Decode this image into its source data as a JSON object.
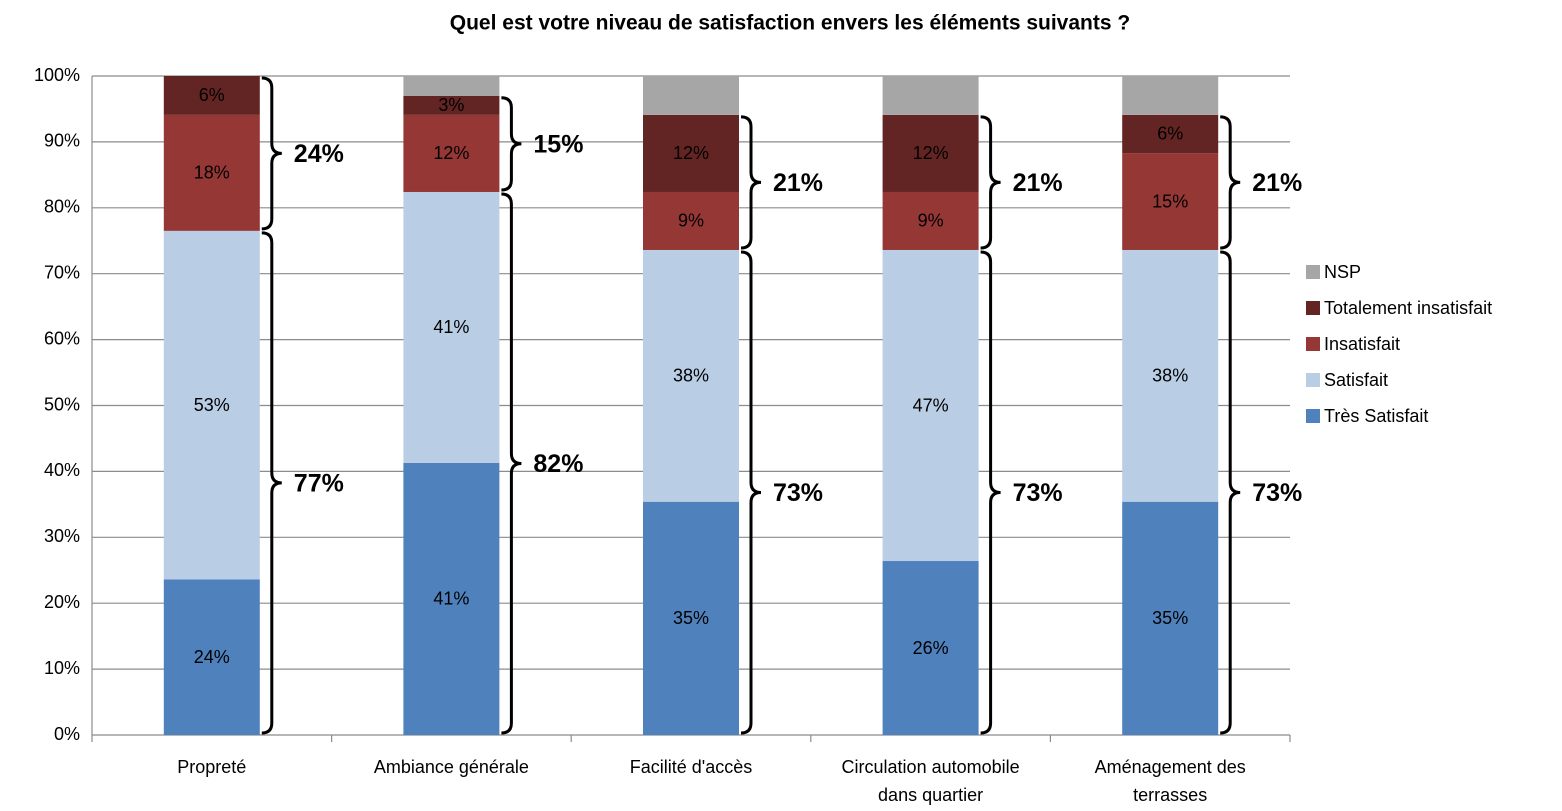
{
  "chart_data": {
    "type": "stacked_bar",
    "title": "Quel est votre niveau de satisfaction envers les éléments suivants ?",
    "categories": [
      "Propreté",
      "Ambiance générale",
      "Facilité d'accès",
      "Circulation automobile dans quartier",
      "Aménagement des terrasses"
    ],
    "series": [
      {
        "name": "Très Satisfait",
        "color": "#4f81bd",
        "values": [
          23.6,
          41.3,
          35.4,
          26.4,
          35.4
        ],
        "value_labels": [
          "24%",
          "41%",
          "35%",
          "26%",
          "35%"
        ]
      },
      {
        "name": "Satisfait",
        "color": "#b9cde5",
        "values": [
          52.9,
          41.1,
          38.2,
          47.2,
          38.2
        ],
        "value_labels": [
          "53%",
          "41%",
          "38%",
          "47%",
          "38%"
        ]
      },
      {
        "name": "Insatisfait",
        "color": "#953735",
        "values": [
          17.6,
          11.7,
          8.8,
          8.8,
          14.7
        ],
        "value_labels": [
          "18%",
          "12%",
          "9%",
          "9%",
          "15%"
        ]
      },
      {
        "name": "Totalement insatisfait",
        "color": "#632523",
        "values": [
          5.9,
          2.9,
          11.7,
          11.7,
          5.8
        ],
        "value_labels": [
          "6%",
          "3%",
          "12%",
          "12%",
          "6%"
        ]
      },
      {
        "name": "NSP",
        "color": "#a6a6a6",
        "values": [
          0,
          3.0,
          5.9,
          5.9,
          5.9
        ],
        "value_labels": [
          null,
          null,
          null,
          null,
          null
        ]
      }
    ],
    "brace_groups": [
      {
        "series": [
          0,
          1
        ],
        "labels": [
          "77%",
          "82%",
          "73%",
          "73%",
          "73%"
        ]
      },
      {
        "series": [
          2,
          3
        ],
        "labels": [
          "24%",
          "15%",
          "21%",
          "21%",
          "21%"
        ]
      }
    ],
    "ylim": [
      0,
      100
    ],
    "yticks": [
      {
        "value": 0,
        "label": "0%"
      },
      {
        "value": 10,
        "label": "10%"
      },
      {
        "value": 20,
        "label": "20%"
      },
      {
        "value": 30,
        "label": "30%"
      },
      {
        "value": 40,
        "label": "40%"
      },
      {
        "value": 50,
        "label": "50%"
      },
      {
        "value": 60,
        "label": "60%"
      },
      {
        "value": 70,
        "label": "70%"
      },
      {
        "value": 80,
        "label": "80%"
      },
      {
        "value": 90,
        "label": "90%"
      },
      {
        "value": 100,
        "label": "100%"
      }
    ],
    "grid": true,
    "legend": "right"
  }
}
